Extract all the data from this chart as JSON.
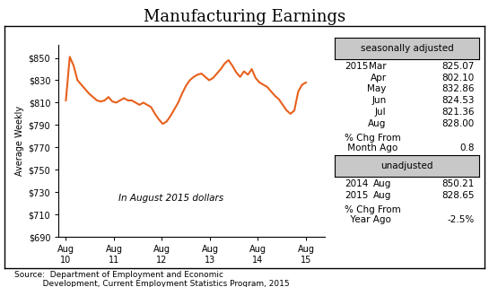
{
  "title": "Manufacturing Earnings",
  "ylabel": "Average Weekly",
  "line_color": "#E8601C",
  "line_width": 1.5,
  "ylim": [
    690,
    862
  ],
  "yticks": [
    690,
    710,
    730,
    750,
    770,
    790,
    810,
    830,
    850
  ],
  "ytick_labels": [
    "$690",
    "$710",
    "$730",
    "$750",
    "$770",
    "$790",
    "$810",
    "$830",
    "$850"
  ],
  "xtick_labels": [
    "Aug\n10",
    "Aug\n11",
    "Aug\n12",
    "Aug\n13",
    "Aug\n14",
    "Aug\n15"
  ],
  "annotation": "In August 2015 dollars",
  "source_line1": "Source:  Department of Employment and Economic",
  "source_line2": "           Development, Current Employment Statistics Program, 2015",
  "seasonally_adjusted_label": "seasonally adjusted",
  "unadjusted_label": "unadjusted",
  "sa_year": "2015",
  "sa_months": [
    "Mar",
    "Apr",
    "May",
    "Jun",
    "Jul",
    "Aug"
  ],
  "sa_values": [
    "825.07",
    "802.10",
    "832.86",
    "824.53",
    "821.36",
    "828.00"
  ],
  "sa_pct_chg_value": "0.8",
  "unadj_rows": [
    [
      "2014",
      "Aug",
      "850.21"
    ],
    [
      "2015",
      "Aug",
      "828.65"
    ]
  ],
  "unadj_pct_chg_value": "-2.5%",
  "y_values": [
    812,
    851,
    843,
    830,
    826,
    822,
    818,
    815,
    812,
    811,
    812,
    815,
    811,
    810,
    812,
    814,
    812,
    812,
    810,
    808,
    810,
    808,
    806,
    800,
    795,
    791,
    793,
    798,
    804,
    810,
    818,
    825,
    830,
    833,
    835,
    836,
    833,
    830,
    832,
    836,
    840,
    845,
    848,
    843,
    837,
    833,
    838,
    835,
    840,
    832,
    828,
    826,
    824,
    820,
    816,
    813,
    808,
    803,
    800,
    803,
    820,
    826,
    828
  ]
}
